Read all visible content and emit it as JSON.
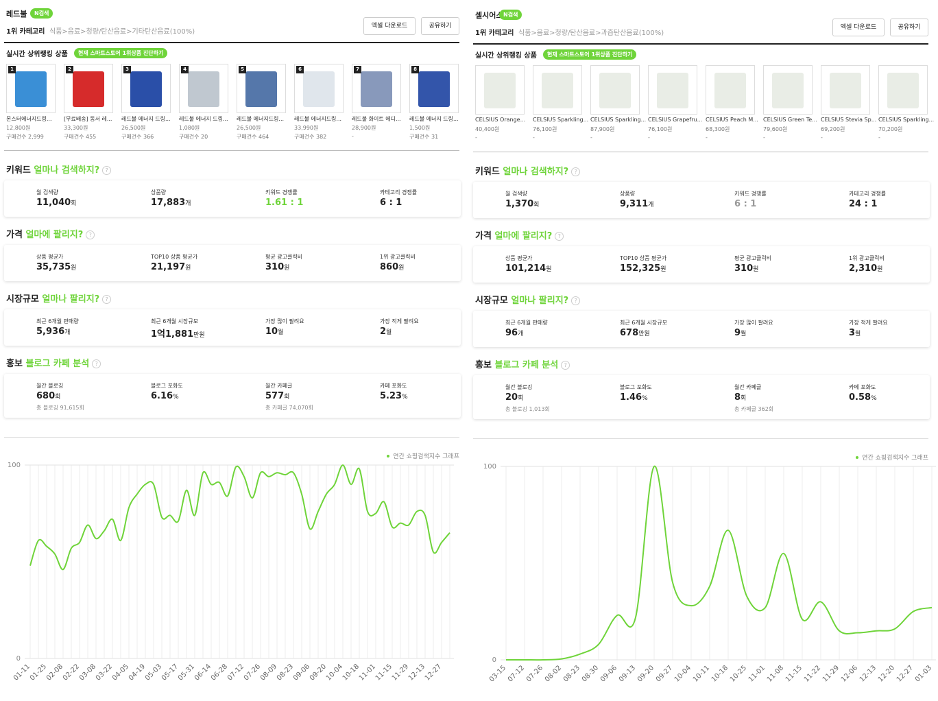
{
  "help": "?",
  "panels": [
    {
      "keyword": "레드불",
      "badge": "N검색",
      "category_label": "1위 카테고리",
      "category_path": "식품>음료>청량/탄산음료>기타탄산음료(100%)",
      "buttons": [
        "엑셀 다운로드",
        "공유하기"
      ],
      "products_title": "실시간 상위랭킹 상품",
      "products_badge": "현재 스마트스토어 1위상품 진단하기",
      "products": [
        {
          "rank": 1,
          "name": "몬스터에너지드링...",
          "price": "12,800원",
          "sales": "구매건수 2,999"
        },
        {
          "rank": 2,
          "name": "[무료배송] 동서 레...",
          "price": "33,300원",
          "sales": "구매건수 455"
        },
        {
          "rank": 3,
          "name": "레드불 에너지 드링...",
          "price": "26,500원",
          "sales": "구매건수 366"
        },
        {
          "rank": 4,
          "name": "레드불 에너지 드링...",
          "price": "1,080원",
          "sales": "구매건수 20"
        },
        {
          "rank": 5,
          "name": "레드불 에너지드링...",
          "price": "26,500원",
          "sales": "구매건수 464"
        },
        {
          "rank": 6,
          "name": "레드불 에너지드링...",
          "price": "33,990원",
          "sales": "구매건수 382"
        },
        {
          "rank": 7,
          "name": "레드불 화이트 에디...",
          "price": "28,900원",
          "sales": "-"
        },
        {
          "rank": 8,
          "name": "레드불 에너지 드링...",
          "price": "1,500원",
          "sales": "구매건수 31"
        }
      ],
      "sections": [
        {
          "title": "키워드",
          "highlight": "얼마나 검색하지?",
          "metrics": [
            {
              "label": "월 검색량",
              "value": "11,040",
              "unit": "회"
            },
            {
              "label": "상품량",
              "value": "17,883",
              "unit": "개"
            },
            {
              "label": "키워드 경쟁률",
              "value": "1.61 : 1",
              "color": "#6fd43a"
            },
            {
              "label": "카테고리 경쟁률",
              "value": "6 : 1"
            }
          ]
        },
        {
          "title": "가격",
          "highlight": "얼마에 팔리지?",
          "metrics": [
            {
              "label": "상품 평균가",
              "value": "35,735",
              "unit": "원"
            },
            {
              "label": "TOP10 상품 평균가",
              "value": "21,197",
              "unit": "원"
            },
            {
              "label": "평균 광고클릭비",
              "value": "310",
              "unit": "원"
            },
            {
              "label": "1위 광고클릭비",
              "value": "860",
              "unit": "원"
            }
          ]
        },
        {
          "title": "시장규모",
          "highlight": "얼마나 팔리지?",
          "metrics": [
            {
              "label": "최근 6개월 판매량",
              "value": "5,936",
              "unit": "개"
            },
            {
              "label": "최근 6개월 시장규모",
              "value": "1억1,881",
              "unit": "만원"
            },
            {
              "label": "가장 많이 팔려요",
              "value": "10",
              "unit": "월"
            },
            {
              "label": "가장 적게 팔려요",
              "value": "2",
              "unit": "월"
            }
          ]
        },
        {
          "title": "홍보",
          "highlight": "블로그 카페 분석",
          "metrics": [
            {
              "label": "월간 블로깅",
              "value": "680",
              "unit": "회",
              "sub": "총 블로깅 91,615회"
            },
            {
              "label": "블로그 포화도",
              "value": "6.16",
              "unit": "%"
            },
            {
              "label": "월간 카페글",
              "value": "577",
              "unit": "회",
              "sub": "총 카페글 74,070회"
            },
            {
              "label": "카페 포화도",
              "value": "5.23",
              "unit": "%"
            }
          ]
        }
      ],
      "chart_data": {
        "type": "line",
        "legend": "연간 쇼핑검색지수 그래프",
        "color": "#6fd43a",
        "grid": true,
        "ylim": [
          0,
          100
        ],
        "yticks": [
          0,
          100
        ],
        "categories": [
          "01-11",
          null,
          "01-25",
          null,
          "02-08",
          null,
          "02-22",
          null,
          "03-08",
          null,
          "03-22",
          null,
          "04-05",
          null,
          "04-19",
          null,
          "05-03",
          null,
          "05-17",
          null,
          "05-31",
          null,
          "06-14",
          null,
          "06-28",
          null,
          "07-12",
          null,
          "07-26",
          null,
          "08-09",
          null,
          "08-23",
          null,
          "09-06",
          null,
          "09-20",
          null,
          "10-04",
          null,
          "10-18",
          null,
          "11-01",
          null,
          "11-15",
          null,
          "11-29",
          null,
          "12-13",
          null,
          "12-27",
          null
        ],
        "values": [
          48,
          61,
          58,
          54,
          46,
          57,
          60,
          69,
          62,
          66,
          72,
          61,
          78,
          85,
          90,
          90,
          73,
          74,
          71,
          87,
          74,
          96,
          90,
          91,
          84,
          99,
          94,
          83,
          96,
          94,
          96,
          95,
          96,
          85,
          67,
          76,
          85,
          90,
          100,
          90,
          98,
          76,
          75,
          81,
          68,
          70,
          69,
          76,
          74,
          55,
          60,
          65
        ]
      }
    },
    {
      "keyword": "셀시어스",
      "badge": "N검색",
      "category_label": "1위 카테고리",
      "category_path": "식품>음료>청량/탄산음료>과즙탄산음료(100%)",
      "buttons": [
        "엑셀 다운로드",
        "공유하기"
      ],
      "products_title": "실시간 상위랭킹 상품",
      "products_badge": "현재 스마트스토어 1위상품 진단하기",
      "products": [
        {
          "name": "CELSIUS Orange...",
          "price": "40,400원",
          "sales": "-"
        },
        {
          "name": "CELSIUS Sparkling...",
          "price": "76,100원",
          "sales": "-"
        },
        {
          "name": "CELSIUS Sparkling...",
          "price": "87,900원",
          "sales": "-"
        },
        {
          "name": "CELSIUS Grapefru...",
          "price": "76,100원",
          "sales": "-"
        },
        {
          "name": "CELSIUS Peach M...",
          "price": "68,300원",
          "sales": "-"
        },
        {
          "name": "CELSIUS Green Te...",
          "price": "79,600원",
          "sales": "-"
        },
        {
          "name": "CELSIUS Stevia Sp...",
          "price": "69,200원",
          "sales": "-"
        },
        {
          "name": "CELSIUS Sparkling...",
          "price": "70,200원",
          "sales": "-"
        }
      ],
      "sections": [
        {
          "title": "키워드",
          "highlight": "얼마나 검색하지?",
          "metrics": [
            {
              "label": "월 검색량",
              "value": "1,370",
              "unit": "회"
            },
            {
              "label": "상품량",
              "value": "9,311",
              "unit": "개"
            },
            {
              "label": "키워드 경쟁률",
              "value": "6 : 1",
              "color": "#999999"
            },
            {
              "label": "카테고리 경쟁률",
              "value": "24 : 1"
            }
          ]
        },
        {
          "title": "가격",
          "highlight": "얼마에 팔리지?",
          "metrics": [
            {
              "label": "상품 평균가",
              "value": "101,214",
              "unit": "원"
            },
            {
              "label": "TOP10 상품 평균가",
              "value": "152,325",
              "unit": "원"
            },
            {
              "label": "평균 광고클릭비",
              "value": "310",
              "unit": "원"
            },
            {
              "label": "1위 광고클릭비",
              "value": "2,310",
              "unit": "원"
            }
          ]
        },
        {
          "title": "시장규모",
          "highlight": "얼마나 팔리지?",
          "metrics": [
            {
              "label": "최근 6개월 판매량",
              "value": "96",
              "unit": "개"
            },
            {
              "label": "최근 6개월 시장규모",
              "value": "678",
              "unit": "만원"
            },
            {
              "label": "가장 많이 팔려요",
              "value": "9",
              "unit": "월"
            },
            {
              "label": "가장 적게 팔려요",
              "value": "3",
              "unit": "월"
            }
          ]
        },
        {
          "title": "홍보",
          "highlight": "블로그 카페 분석",
          "metrics": [
            {
              "label": "월간 블로깅",
              "value": "20",
              "unit": "회",
              "sub": "총 블로깅 1,013회"
            },
            {
              "label": "블로그 포화도",
              "value": "1.46",
              "unit": "%"
            },
            {
              "label": "월간 카페글",
              "value": "8",
              "unit": "회",
              "sub": "총 카페글 362회"
            },
            {
              "label": "카페 포화도",
              "value": "0.58",
              "unit": "%"
            }
          ]
        }
      ],
      "chart_data": {
        "type": "line",
        "legend": "연간 쇼핑검색지수 그래프",
        "color": "#6fd43a",
        "grid": true,
        "ylim": [
          0,
          100
        ],
        "yticks": [
          0,
          100
        ],
        "categories": [
          "03-15",
          "07-12",
          "07-26",
          "08-02",
          "08-23",
          "08-30",
          "09-06",
          "09-13",
          "09-20",
          "09-27",
          "10-04",
          "10-11",
          "10-18",
          "10-25",
          "11-01",
          "11-08",
          "11-15",
          "11-22",
          "11-29",
          "12-06",
          "12-13",
          "12-20",
          "12-27",
          "01-03"
        ],
        "values": [
          0,
          0,
          0,
          0.5,
          3,
          8,
          23,
          22,
          100,
          40,
          28,
          38,
          67,
          33,
          27,
          55,
          21,
          30,
          15,
          14,
          15,
          16,
          25,
          27
        ]
      }
    }
  ]
}
